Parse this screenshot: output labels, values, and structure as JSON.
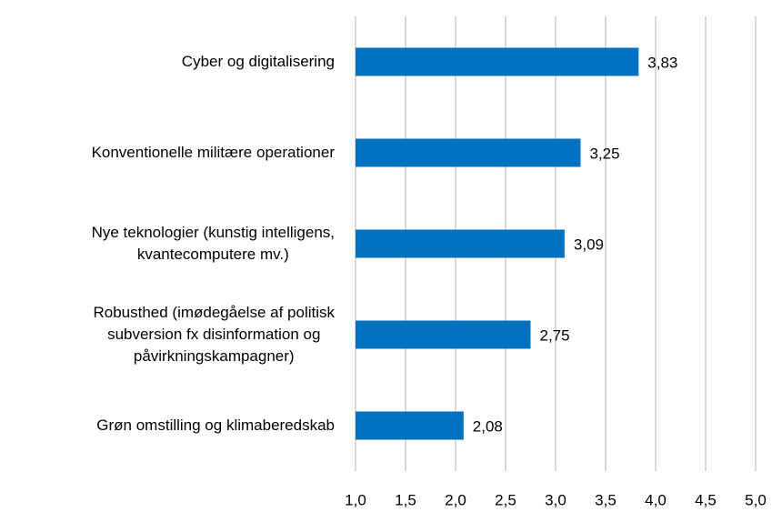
{
  "chart_data": {
    "type": "bar",
    "orientation": "horizontal",
    "categories": [
      "Cyber og digitalisering",
      "Konventionelle militære operationer",
      "Nye teknologier (kunstig intelligens,\nkvantecomputere mv.)",
      "Robusthed (imødegåelse af politisk\nsubversion fx disinformation og\npåvirkningskampagner)",
      "Grøn omstilling og klimaberedskab"
    ],
    "values": [
      3.83,
      3.25,
      3.09,
      2.75,
      2.08
    ],
    "value_labels": [
      "3,83",
      "3,25",
      "3,09",
      "2,75",
      "2,08"
    ],
    "color": "#0070c0",
    "xlim": [
      1,
      5
    ],
    "xticks": [
      {
        "value": 1,
        "label": "1,0"
      },
      {
        "value": 1.5,
        "label": "1,5"
      },
      {
        "value": 2,
        "label": "2,0"
      },
      {
        "value": 2.5,
        "label": "2,5"
      },
      {
        "value": 3,
        "label": "3,0"
      },
      {
        "value": 3.5,
        "label": "3,5"
      },
      {
        "value": 4,
        "label": "4,0"
      },
      {
        "value": 4.5,
        "label": "4,5"
      },
      {
        "value": 5,
        "label": "5,0"
      }
    ],
    "grid": true
  }
}
